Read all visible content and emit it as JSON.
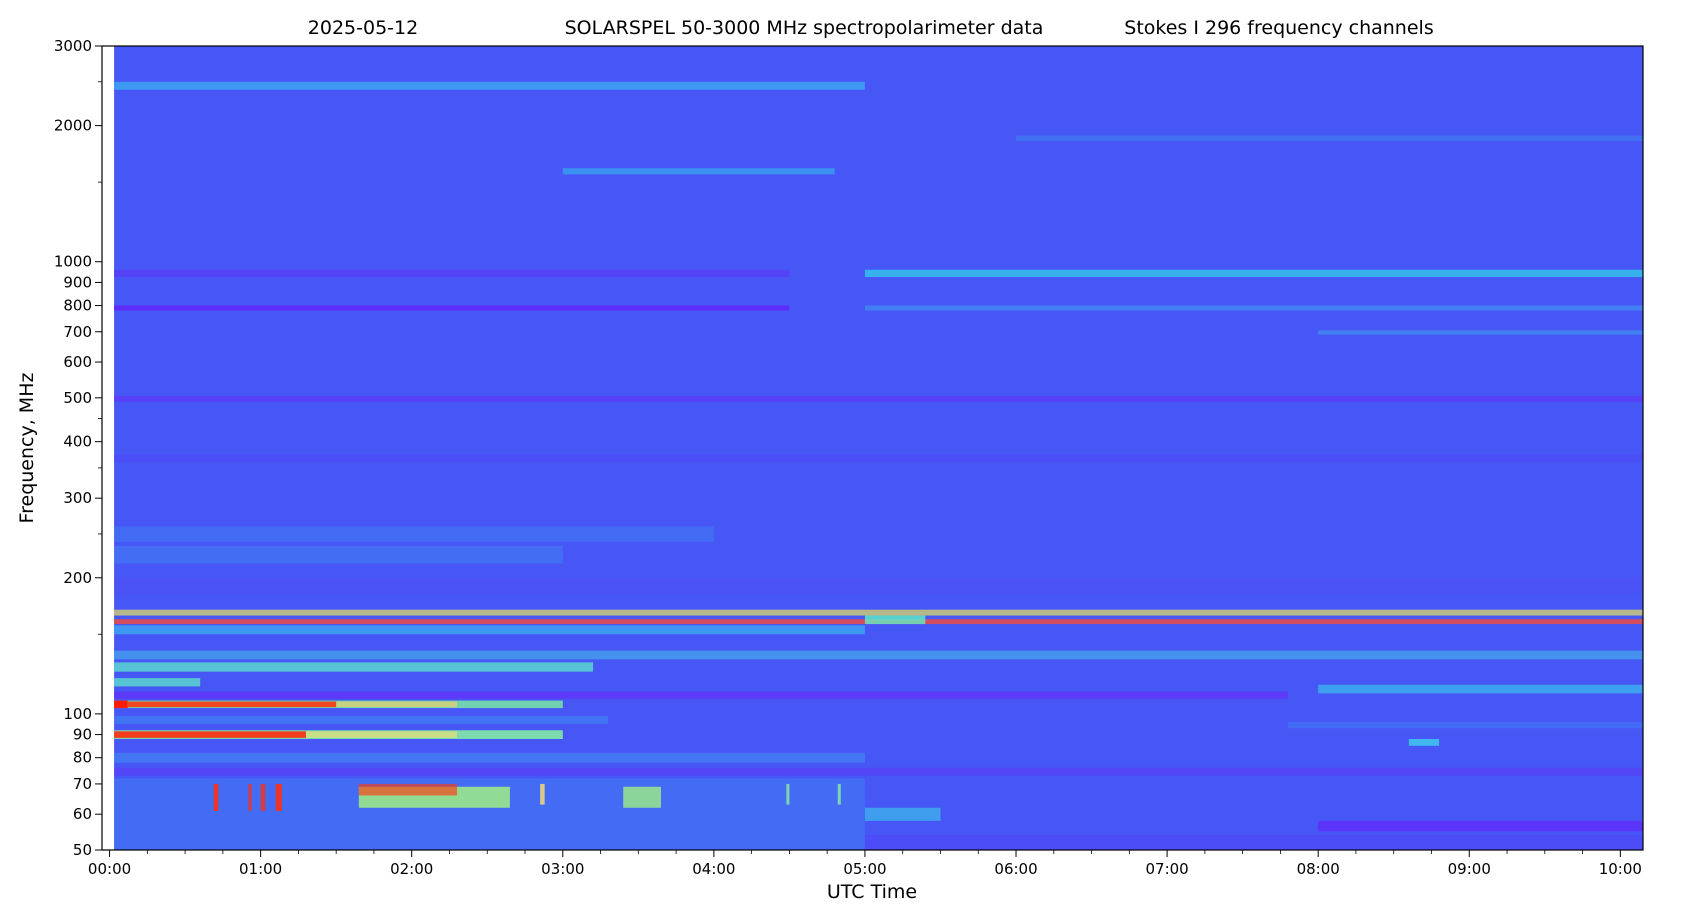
{
  "chart_data": {
    "type": "heatmap",
    "title_parts": [
      "2025-05-12",
      "SOLARSPEL   50-3000 MHz spectropolarimeter data",
      "Stokes I   296 frequency channels"
    ],
    "xlabel": "UTC Time",
    "ylabel": "Frequency, MHz",
    "yscale": "log",
    "ylim": [
      50,
      3000
    ],
    "xlim_hours": [
      -0.05,
      10.15
    ],
    "data_start_hours": 0.03,
    "x_ticks": [
      {
        "label": "00:00",
        "hours": 0
      },
      {
        "label": "01:00",
        "hours": 1
      },
      {
        "label": "02:00",
        "hours": 2
      },
      {
        "label": "03:00",
        "hours": 3
      },
      {
        "label": "04:00",
        "hours": 4
      },
      {
        "label": "05:00",
        "hours": 5
      },
      {
        "label": "06:00",
        "hours": 6
      },
      {
        "label": "07:00",
        "hours": 7
      },
      {
        "label": "08:00",
        "hours": 8
      },
      {
        "label": "09:00",
        "hours": 9
      },
      {
        "label": "10:00",
        "hours": 10
      }
    ],
    "y_ticks_major": [
      {
        "label": "50",
        "mhz": 50
      },
      {
        "label": "60",
        "mhz": 60
      },
      {
        "label": "70",
        "mhz": 70
      },
      {
        "label": "80",
        "mhz": 80
      },
      {
        "label": "90",
        "mhz": 90
      },
      {
        "label": "100",
        "mhz": 100
      },
      {
        "label": "200",
        "mhz": 200
      },
      {
        "label": "300",
        "mhz": 300
      },
      {
        "label": "400",
        "mhz": 400
      },
      {
        "label": "500",
        "mhz": 500
      },
      {
        "label": "600",
        "mhz": 600
      },
      {
        "label": "700",
        "mhz": 700
      },
      {
        "label": "800",
        "mhz": 800
      },
      {
        "label": "900",
        "mhz": 900
      },
      {
        "label": "1000",
        "mhz": 1000
      },
      {
        "label": "2000",
        "mhz": 2000
      },
      {
        "label": "3000",
        "mhz": 3000
      }
    ],
    "y_ticks_minor_mhz": [
      150,
      250,
      350,
      450,
      1500,
      2500
    ],
    "colormap": [
      "#3030ff",
      "#4a5cf8",
      "#30d6ee",
      "#86f2a0",
      "#fff37a",
      "#ff3a10"
    ],
    "background_color": "#4757f5",
    "bands": [
      {
        "f1": 2400,
        "f2": 2500,
        "t1": 0.03,
        "t2": 5.0,
        "color": "#35d0ec",
        "opacity": 0.55
      },
      {
        "f1": 1560,
        "f2": 1610,
        "t1": 3.0,
        "t2": 4.8,
        "color": "#33b7ee",
        "opacity": 0.6
      },
      {
        "f1": 1850,
        "f2": 1900,
        "t1": 6.0,
        "t2": 10.15,
        "color": "#3f8bf2",
        "opacity": 0.5
      },
      {
        "f1": 925,
        "f2": 960,
        "t1": 0.03,
        "t2": 4.5,
        "color": "#5540f7",
        "opacity": 0.9
      },
      {
        "f1": 925,
        "f2": 960,
        "t1": 5.0,
        "t2": 10.15,
        "color": "#33c8ec",
        "opacity": 0.8
      },
      {
        "f1": 780,
        "f2": 800,
        "t1": 0.03,
        "t2": 4.5,
        "color": "#6028f8",
        "opacity": 0.9
      },
      {
        "f1": 780,
        "f2": 800,
        "t1": 5.0,
        "t2": 10.15,
        "color": "#3f92f2",
        "opacity": 0.7
      },
      {
        "f1": 690,
        "f2": 705,
        "t1": 8.0,
        "t2": 10.15,
        "color": "#3f9cf2",
        "opacity": 0.6
      },
      {
        "f1": 490,
        "f2": 505,
        "t1": 0.03,
        "t2": 10.15,
        "color": "#5a3cf7",
        "opacity": 0.8
      },
      {
        "f1": 360,
        "f2": 375,
        "t1": 0.03,
        "t2": 10.15,
        "color": "#4f48f6",
        "opacity": 0.6
      },
      {
        "f1": 240,
        "f2": 260,
        "t1": 0.03,
        "t2": 4.0,
        "color": "#3f82f2",
        "opacity": 0.45
      },
      {
        "f1": 215,
        "f2": 235,
        "t1": 0.03,
        "t2": 3.0,
        "color": "#3f8cf2",
        "opacity": 0.45
      },
      {
        "f1": 185,
        "f2": 200,
        "t1": 0.03,
        "t2": 10.15,
        "color": "#4f50f6",
        "opacity": 0.5
      },
      {
        "f1": 165,
        "f2": 170,
        "t1": 0.03,
        "t2": 10.15,
        "color": "#e7e060",
        "opacity": 0.7
      },
      {
        "f1": 158,
        "f2": 162,
        "t1": 0.03,
        "t2": 10.15,
        "color": "#ff4a30",
        "opacity": 0.75
      },
      {
        "f1": 150,
        "f2": 157,
        "t1": 0.03,
        "t2": 5.0,
        "color": "#38c2ec",
        "opacity": 0.6
      },
      {
        "f1": 132,
        "f2": 138,
        "t1": 0.03,
        "t2": 10.15,
        "color": "#46c0e8",
        "opacity": 0.55
      },
      {
        "f1": 124,
        "f2": 130,
        "t1": 0.03,
        "t2": 3.2,
        "color": "#5cf2c8",
        "opacity": 0.7
      },
      {
        "f1": 115,
        "f2": 120,
        "t1": 0.03,
        "t2": 0.6,
        "color": "#5cf2c8",
        "opacity": 0.7
      },
      {
        "f1": 108,
        "f2": 112,
        "t1": 0.03,
        "t2": 7.8,
        "color": "#6133f8",
        "opacity": 0.8
      },
      {
        "f1": 103,
        "f2": 107,
        "t1": 0.03,
        "t2": 3.0,
        "color": "#7cf0a0",
        "opacity": 0.8
      },
      {
        "f1": 103,
        "f2": 107,
        "t1": 0.03,
        "t2": 0.12,
        "color": "#ff1a0a",
        "opacity": 1
      },
      {
        "f1": 103.5,
        "f2": 106.5,
        "t1": 0.12,
        "t2": 1.5,
        "color": "#ff3a10",
        "opacity": 0.9
      },
      {
        "f1": 103.5,
        "f2": 106.5,
        "t1": 1.5,
        "t2": 2.3,
        "color": "#ffd060",
        "opacity": 0.6
      },
      {
        "f1": 111,
        "f2": 116,
        "t1": 8.0,
        "t2": 10.15,
        "color": "#36cfec",
        "opacity": 0.6
      },
      {
        "f1": 95,
        "f2": 99,
        "t1": 0.03,
        "t2": 3.3,
        "color": "#3f86f2",
        "opacity": 0.6
      },
      {
        "f1": 88,
        "f2": 92,
        "t1": 0.03,
        "t2": 3.0,
        "color": "#86f2a0",
        "opacity": 0.85
      },
      {
        "f1": 88.5,
        "f2": 91.5,
        "t1": 0.03,
        "t2": 1.3,
        "color": "#ff2a10",
        "opacity": 0.9
      },
      {
        "f1": 88.5,
        "f2": 91.5,
        "t1": 1.3,
        "t2": 2.3,
        "color": "#ffe070",
        "opacity": 0.6
      },
      {
        "f1": 93,
        "f2": 96,
        "t1": 7.8,
        "t2": 10.15,
        "color": "#3f80f2",
        "opacity": 0.5
      },
      {
        "f1": 85,
        "f2": 88,
        "t1": 8.6,
        "t2": 8.8,
        "color": "#3fd0ec",
        "opacity": 0.8
      },
      {
        "f1": 78,
        "f2": 82,
        "t1": 0.03,
        "t2": 5.0,
        "color": "#3d9ef0",
        "opacity": 0.45
      },
      {
        "f1": 73,
        "f2": 76,
        "t1": 0.03,
        "t2": 10.15,
        "color": "#5e36f7",
        "opacity": 0.5
      },
      {
        "f1": 50,
        "f2": 72,
        "t1": 0.03,
        "t2": 5.0,
        "color": "#3d8cf0",
        "opacity": 0.38
      },
      {
        "f1": 55,
        "f2": 58,
        "t1": 8.0,
        "t2": 10.15,
        "color": "#6028f8",
        "opacity": 0.75
      },
      {
        "f1": 58,
        "f2": 62,
        "t1": 5.0,
        "t2": 5.5,
        "color": "#3ccdea",
        "opacity": 0.6
      },
      {
        "f1": 50,
        "f2": 54,
        "t1": 5.0,
        "t2": 10.15,
        "color": "#5244f7",
        "opacity": 0.5
      },
      {
        "f1": 62,
        "f2": 69,
        "t1": 1.65,
        "t2": 2.65,
        "color": "#9ef084",
        "opacity": 0.85
      },
      {
        "f1": 66,
        "f2": 70,
        "t1": 1.65,
        "t2": 2.3,
        "color": "#ff3a10",
        "opacity": 0.65
      },
      {
        "f1": 62,
        "f2": 69,
        "t1": 3.4,
        "t2": 3.65,
        "color": "#9ef084",
        "opacity": 0.8
      },
      {
        "f1": 61,
        "f2": 70,
        "t1": 0.69,
        "t2": 0.72,
        "color": "#ff3010",
        "opacity": 0.9
      },
      {
        "f1": 61,
        "f2": 70,
        "t1": 0.92,
        "t2": 0.94,
        "color": "#ff3010",
        "opacity": 0.8
      },
      {
        "f1": 61,
        "f2": 70,
        "t1": 1.0,
        "t2": 1.03,
        "color": "#ff3010",
        "opacity": 0.8
      },
      {
        "f1": 61,
        "f2": 70,
        "t1": 1.1,
        "t2": 1.14,
        "color": "#ff3010",
        "opacity": 0.9
      },
      {
        "f1": 63,
        "f2": 70,
        "t1": 2.85,
        "t2": 2.88,
        "color": "#ffe070",
        "opacity": 0.8
      },
      {
        "f1": 63,
        "f2": 70,
        "t1": 4.48,
        "t2": 4.5,
        "color": "#8af0a0",
        "opacity": 0.8
      },
      {
        "f1": 63,
        "f2": 70,
        "t1": 4.82,
        "t2": 4.84,
        "color": "#8af0a0",
        "opacity": 0.8
      },
      {
        "f1": 158,
        "f2": 165,
        "t1": 5.0,
        "t2": 5.4,
        "color": "#5cf0c8",
        "opacity": 0.8
      }
    ]
  }
}
